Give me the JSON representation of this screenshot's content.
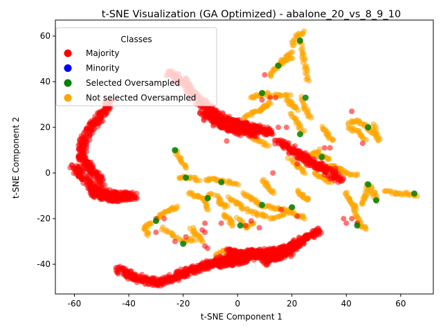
{
  "chart_data": {
    "type": "scatter",
    "title": "t-SNE Visualization (GA Optimized) - abalone_20_vs_8_9_10",
    "xlabel": "t-SNE Component 1",
    "ylabel": "t-SNE Component 2",
    "xlim": [
      -67,
      72
    ],
    "ylim": [
      -53,
      67
    ],
    "xticks": [
      -60,
      -40,
      -20,
      0,
      20,
      40,
      60
    ],
    "yticks": [
      -40,
      -20,
      0,
      20,
      40,
      60
    ],
    "grid": false,
    "legend": {
      "title": "Classes",
      "placement": "top-left",
      "entries": [
        {
          "label": "Majority",
          "color": "#ff0000"
        },
        {
          "label": "Minority",
          "color": "#0000ff"
        },
        {
          "label": "Selected Oversampled",
          "color": "#008000"
        },
        {
          "label": "Not selected Oversampled",
          "color": "#ffa500"
        }
      ]
    },
    "clusters": {
      "majority_strokes": [
        [
          [
            -47,
            31
          ],
          [
            -50,
            26
          ],
          [
            -54,
            20
          ],
          [
            -57,
            13
          ],
          [
            -57,
            6
          ],
          [
            -54,
            1
          ],
          [
            -50,
            -4
          ]
        ],
        [
          [
            -60,
            3
          ],
          [
            -57,
            -1
          ],
          [
            -53,
            -7
          ],
          [
            -48,
            -9
          ],
          [
            -42,
            -10
          ],
          [
            -38,
            -10
          ]
        ],
        [
          [
            -54,
            -8
          ],
          [
            -50,
            -10
          ],
          [
            -45,
            -11
          ],
          [
            -40,
            -10
          ]
        ],
        [
          [
            -25,
            44
          ],
          [
            -20,
            40
          ],
          [
            -16,
            34
          ],
          [
            -12,
            29
          ],
          [
            -7,
            25
          ],
          [
            -2,
            22
          ],
          [
            3,
            21
          ],
          [
            8,
            19
          ],
          [
            13,
            18
          ]
        ],
        [
          [
            -13,
            26
          ],
          [
            -8,
            22
          ],
          [
            -3,
            20
          ],
          [
            2,
            18
          ],
          [
            7,
            17
          ]
        ],
        [
          [
            15,
            14
          ],
          [
            20,
            10
          ],
          [
            24,
            7
          ],
          [
            28,
            4
          ],
          [
            33,
            1
          ],
          [
            38,
            -3
          ]
        ],
        [
          [
            -44,
            -42
          ],
          [
            -39,
            -45
          ],
          [
            -34,
            -47
          ],
          [
            -29,
            -48
          ],
          [
            -24,
            -46
          ],
          [
            -20,
            -44
          ],
          [
            -15,
            -42
          ],
          [
            -10,
            -40
          ],
          [
            -5,
            -38
          ],
          [
            0,
            -36
          ],
          [
            5,
            -35
          ],
          [
            10,
            -35
          ],
          [
            15,
            -34
          ],
          [
            20,
            -32
          ],
          [
            25,
            -29
          ],
          [
            30,
            -25
          ]
        ],
        [
          [
            -8,
            -40
          ],
          [
            -3,
            -39
          ],
          [
            2,
            -38
          ],
          [
            8,
            -36
          ],
          [
            14,
            -37
          ],
          [
            19,
            -35
          ]
        ],
        [
          [
            -3,
            -34
          ],
          [
            -1,
            -36
          ],
          [
            1,
            -37
          ],
          [
            4,
            -36
          ]
        ],
        [
          [
            10,
            -39
          ],
          [
            15,
            -36
          ],
          [
            19,
            -33
          ],
          [
            23,
            -31
          ]
        ]
      ],
      "majority_points": [
        [
          -30,
          -20
        ],
        [
          -27,
          -20
        ],
        [
          -12,
          -32
        ],
        [
          -11,
          -33
        ],
        [
          -13,
          -25
        ],
        [
          -12,
          -26
        ],
        [
          -12,
          -22
        ],
        [
          -6,
          -22
        ],
        [
          -19,
          -28
        ],
        [
          -23,
          -30
        ],
        [
          -30,
          -26
        ],
        [
          3,
          -23
        ],
        [
          5,
          -21
        ],
        [
          8,
          -24
        ],
        [
          10,
          43
        ],
        [
          12,
          33
        ],
        [
          14,
          33
        ],
        [
          18,
          20
        ],
        [
          22,
          4
        ],
        [
          26,
          6
        ],
        [
          32,
          11
        ],
        [
          34,
          11
        ],
        [
          36,
          2
        ],
        [
          39,
          -20
        ],
        [
          40,
          -22
        ],
        [
          42,
          -20
        ],
        [
          44,
          -22
        ],
        [
          46,
          13
        ],
        [
          42,
          27
        ],
        [
          15,
          20
        ],
        [
          9,
          32
        ],
        [
          -4,
          14
        ],
        [
          13,
          0
        ],
        [
          22,
          -19
        ],
        [
          16,
          -16
        ]
      ],
      "selected_oversampled": [
        [
          -23,
          10
        ],
        [
          -19,
          -2
        ],
        [
          -6,
          -4
        ],
        [
          -30,
          -21
        ],
        [
          -20,
          -31
        ],
        [
          -11,
          -11
        ],
        [
          1,
          -23
        ],
        [
          9,
          -14
        ],
        [
          9,
          35
        ],
        [
          15,
          47
        ],
        [
          23,
          58
        ],
        [
          25,
          33
        ],
        [
          23,
          17
        ],
        [
          20,
          -15
        ],
        [
          31,
          7
        ],
        [
          48,
          20
        ],
        [
          48,
          -5
        ],
        [
          51,
          -12
        ],
        [
          44,
          -23
        ],
        [
          65,
          -9
        ]
      ]
    }
  }
}
